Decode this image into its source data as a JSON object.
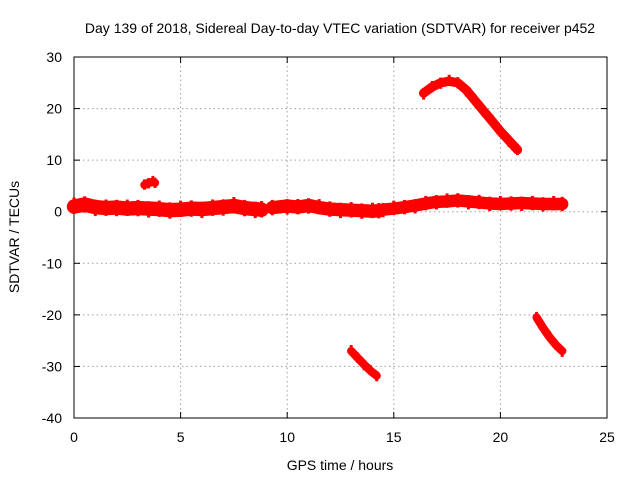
{
  "chart_data": {
    "type": "scatter",
    "title": "Day 139 of 2018, Sidereal Day-to-day VTEC variation (SDTVAR) for receiver p452",
    "xlabel": "GPS time / hours",
    "ylabel": "SDTVAR / TECUs",
    "xlim": [
      0,
      25
    ],
    "ylim": [
      -40,
      30
    ],
    "xticks": [
      0,
      5,
      10,
      15,
      20,
      25
    ],
    "yticks": [
      -40,
      -30,
      -20,
      -10,
      0,
      10,
      20,
      30
    ],
    "xtick_labels": [
      "0",
      "5",
      "10",
      "15",
      "20",
      "25"
    ],
    "ytick_labels": [
      "-40",
      "-30",
      "-20",
      "-10",
      "0",
      "10",
      "20",
      "30"
    ],
    "grid": true,
    "color": "#ff0000",
    "series": [
      {
        "name": "trace-1",
        "thickness": 2.8,
        "x": [
          0.0,
          0.5,
          1.0,
          1.5,
          2.0,
          2.5,
          3.0,
          3.5,
          4.0,
          4.5,
          5.0,
          5.5,
          6.0,
          6.5,
          7.0,
          7.5,
          8.0,
          8.5,
          8.8
        ],
        "y": [
          1.0,
          1.4,
          0.9,
          0.7,
          0.8,
          0.6,
          0.7,
          0.6,
          0.5,
          0.3,
          0.4,
          0.6,
          0.5,
          0.7,
          0.9,
          1.1,
          0.7,
          0.5,
          0.4
        ]
      },
      {
        "name": "trace-2",
        "thickness": 1.6,
        "x": [
          3.3,
          3.5,
          3.7,
          3.8
        ],
        "y": [
          5.2,
          5.6,
          5.8,
          5.6
        ]
      },
      {
        "name": "trace-3",
        "thickness": 2.6,
        "x": [
          9.3,
          10.0,
          10.5,
          11.0,
          11.5,
          12.0,
          12.5,
          13.0,
          13.5,
          14.0,
          14.3
        ],
        "y": [
          0.8,
          1.1,
          0.9,
          1.2,
          0.8,
          0.5,
          0.4,
          0.3,
          0.2,
          0.1,
          0.2
        ]
      },
      {
        "name": "trace-4",
        "thickness": 2.4,
        "x": [
          14.5,
          15.0,
          15.5,
          16.0,
          16.5,
          17.0,
          17.5,
          18.0,
          18.5,
          19.0,
          19.5,
          20.0,
          20.5,
          21.0,
          21.5,
          22.0,
          22.5,
          22.9
        ],
        "y": [
          0.4,
          0.6,
          0.9,
          1.2,
          1.6,
          1.9,
          2.0,
          2.2,
          2.0,
          1.8,
          1.6,
          1.5,
          1.6,
          1.7,
          1.6,
          1.5,
          1.5,
          1.5
        ]
      },
      {
        "name": "trace-5",
        "thickness": 1.8,
        "x": [
          16.4,
          16.8,
          17.2,
          17.6,
          18.0,
          18.4,
          18.8,
          19.2,
          19.6,
          20.0,
          20.4,
          20.8
        ],
        "y": [
          23.0,
          24.2,
          25.0,
          25.3,
          25.0,
          23.6,
          21.6,
          19.6,
          17.6,
          15.6,
          13.8,
          12.0
        ]
      },
      {
        "name": "trace-6",
        "thickness": 1.6,
        "x": [
          13.0,
          13.3,
          13.6,
          13.9,
          14.2
        ],
        "y": [
          -27.0,
          -28.3,
          -29.6,
          -30.8,
          -31.8
        ]
      },
      {
        "name": "trace-7",
        "thickness": 1.6,
        "x": [
          21.7,
          22.0,
          22.3,
          22.6,
          22.9
        ],
        "y": [
          -20.5,
          -22.5,
          -24.3,
          -25.8,
          -27.0
        ]
      }
    ]
  }
}
